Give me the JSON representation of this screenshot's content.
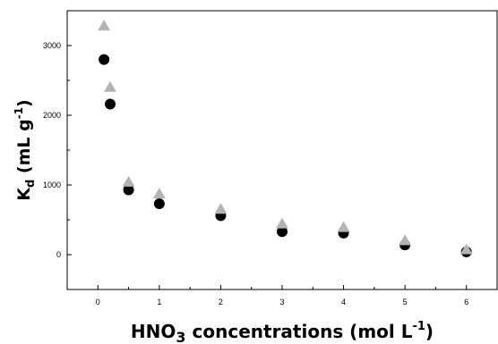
{
  "chart_data": {
    "type": "scatter",
    "xlabel_main": "HNO",
    "xlabel_sub": "3",
    "xlabel_rest": " concentrations (mol L",
    "xlabel_sup": "-1",
    "xlabel_close": ")",
    "ylabel_main": "K",
    "ylabel_sub": "d",
    "ylabel_rest": " (mL g",
    "ylabel_sup": "-1",
    "ylabel_close": ")",
    "xlim": [
      -0.5,
      6.5
    ],
    "ylim": [
      -500,
      3500
    ],
    "xticks": [
      0,
      1,
      2,
      3,
      4,
      5,
      6
    ],
    "yticks": [
      0,
      1000,
      2000,
      3000
    ],
    "series": [
      {
        "marker": "circle",
        "color": "#000000",
        "points": [
          {
            "x": 0.1,
            "y": 2800
          },
          {
            "x": 0.2,
            "y": 2160
          },
          {
            "x": 0.5,
            "y": 930
          },
          {
            "x": 1,
            "y": 730
          },
          {
            "x": 2,
            "y": 560
          },
          {
            "x": 3,
            "y": 330
          },
          {
            "x": 4,
            "y": 310
          },
          {
            "x": 5,
            "y": 140
          },
          {
            "x": 6,
            "y": 40
          }
        ]
      },
      {
        "marker": "triangle",
        "color": "#b4b4b4",
        "points": [
          {
            "x": 0.1,
            "y": 3280
          },
          {
            "x": 0.2,
            "y": 2400
          },
          {
            "x": 0.5,
            "y": 1040
          },
          {
            "x": 1,
            "y": 870
          },
          {
            "x": 2,
            "y": 650
          },
          {
            "x": 3,
            "y": 440
          },
          {
            "x": 4,
            "y": 390
          },
          {
            "x": 5,
            "y": 200
          },
          {
            "x": 6,
            "y": 70
          }
        ]
      }
    ]
  }
}
